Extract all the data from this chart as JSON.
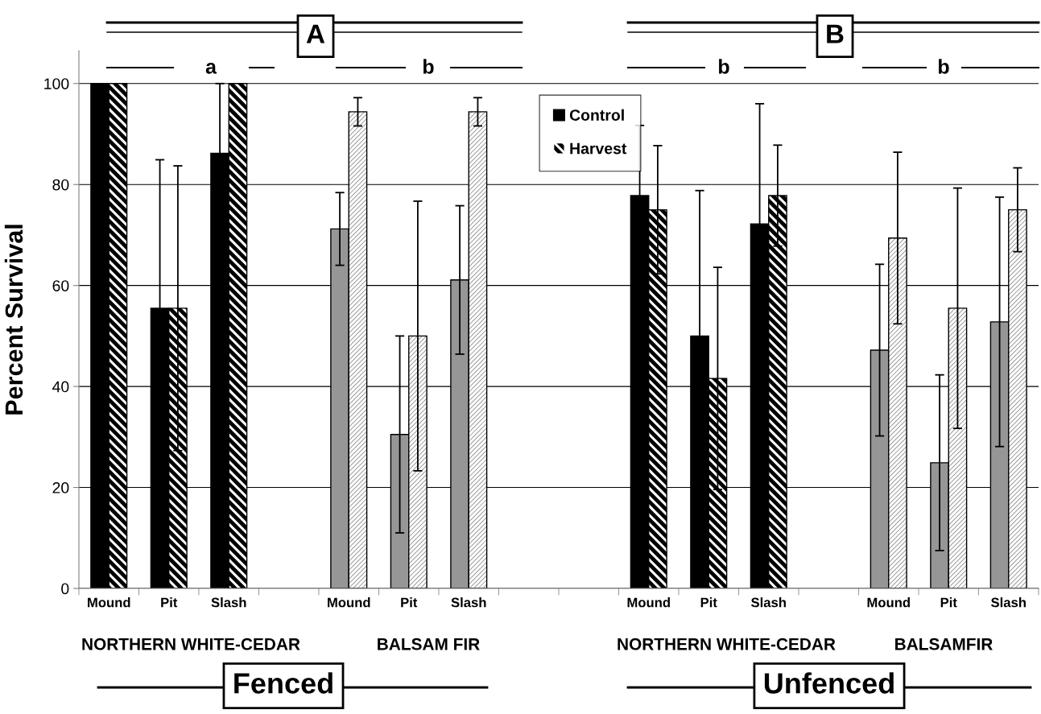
{
  "chart_data": {
    "type": "bar",
    "ylabel": "Percent Survival",
    "categories": [
      "Mound",
      "Pit",
      "Slash",
      null,
      "Mound",
      "Pit",
      "Slash",
      null,
      null,
      "Mound",
      "Pit",
      "Slash",
      null,
      "Mound",
      "Pit",
      "Slash"
    ],
    "series": [
      {
        "name": "Control",
        "color": "#000000",
        "colors": [
          "#000000",
          "#000000",
          "#000000",
          null,
          "#969696",
          "#969696",
          "#969696",
          null,
          null,
          "#000000",
          "#000000",
          "#000000",
          null,
          "#969696",
          "#969696",
          "#969696"
        ],
        "values": [
          100,
          55.5,
          86.2,
          null,
          71.2,
          30.5,
          61.1,
          null,
          null,
          77.8,
          50.0,
          72.2,
          null,
          47.2,
          24.9,
          52.8
        ],
        "errors": [
          null,
          29.4,
          13.8,
          null,
          7.2,
          19.5,
          14.7,
          null,
          null,
          13.9,
          28.8,
          23.8,
          null,
          17.0,
          17.4,
          24.7
        ]
      },
      {
        "name": "Harvest",
        "color": "#000000",
        "colors": [
          "#000000",
          "#000000",
          "#000000",
          null,
          "#8c8c8c",
          "#8c8c8c",
          "#8c8c8c",
          null,
          null,
          "#000000",
          "#000000",
          "#000000",
          null,
          "#8c8c8c",
          "#8c8c8c",
          "#8c8c8c"
        ],
        "values": [
          100,
          55.5,
          100,
          null,
          94.4,
          50.0,
          94.4,
          null,
          null,
          75.0,
          41.6,
          77.8,
          null,
          69.4,
          55.5,
          75.0
        ],
        "errors": [
          null,
          28.2,
          null,
          null,
          2.8,
          26.7,
          2.8,
          null,
          null,
          12.7,
          22.0,
          10.0,
          null,
          17.0,
          23.8,
          8.3
        ]
      }
    ],
    "ylim": [
      0,
      106.5
    ],
    "yticks": [
      0,
      20,
      40,
      60,
      80,
      100
    ],
    "grid": "y",
    "legend": "top",
    "annotations": [
      "A",
      "B",
      "a",
      "b",
      "b",
      "b",
      "NORTHERN WHITE-CEDAR",
      "BALSAM FIR",
      "NORTHERN WHITE-CEDAR",
      "BALSAMFIR",
      "Fenced",
      "Unfenced"
    ]
  }
}
